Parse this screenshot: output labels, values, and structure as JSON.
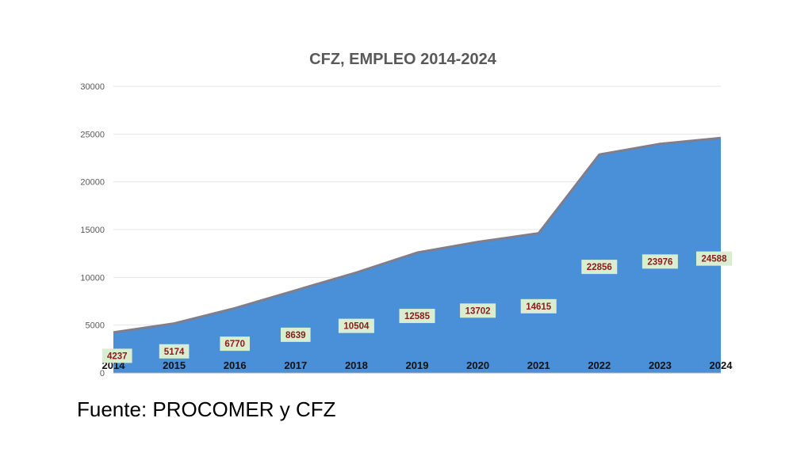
{
  "chart_data": {
    "type": "area",
    "title": "CFZ,  EMPLEO 2014-2024",
    "categories": [
      "2014",
      "2015",
      "2016",
      "2017",
      "2018",
      "2019",
      "2020",
      "2021",
      "2022",
      "2023",
      "2024"
    ],
    "values": [
      4237,
      5174,
      6770,
      8639,
      10504,
      12585,
      13702,
      14615,
      22856,
      23976,
      24588
    ],
    "ylim": [
      0,
      30000
    ],
    "yticks": [
      0,
      5000,
      10000,
      15000,
      20000,
      25000,
      30000
    ],
    "xlabel": "",
    "ylabel": "",
    "grid": true,
    "legend": "none",
    "colors": {
      "area": "#4A90D9",
      "outline": "#7E7E8C",
      "label_bg": "#D9EDD0",
      "label_text": "#8B1A1A"
    }
  },
  "source": "Fuente: PROCOMER y CFZ"
}
